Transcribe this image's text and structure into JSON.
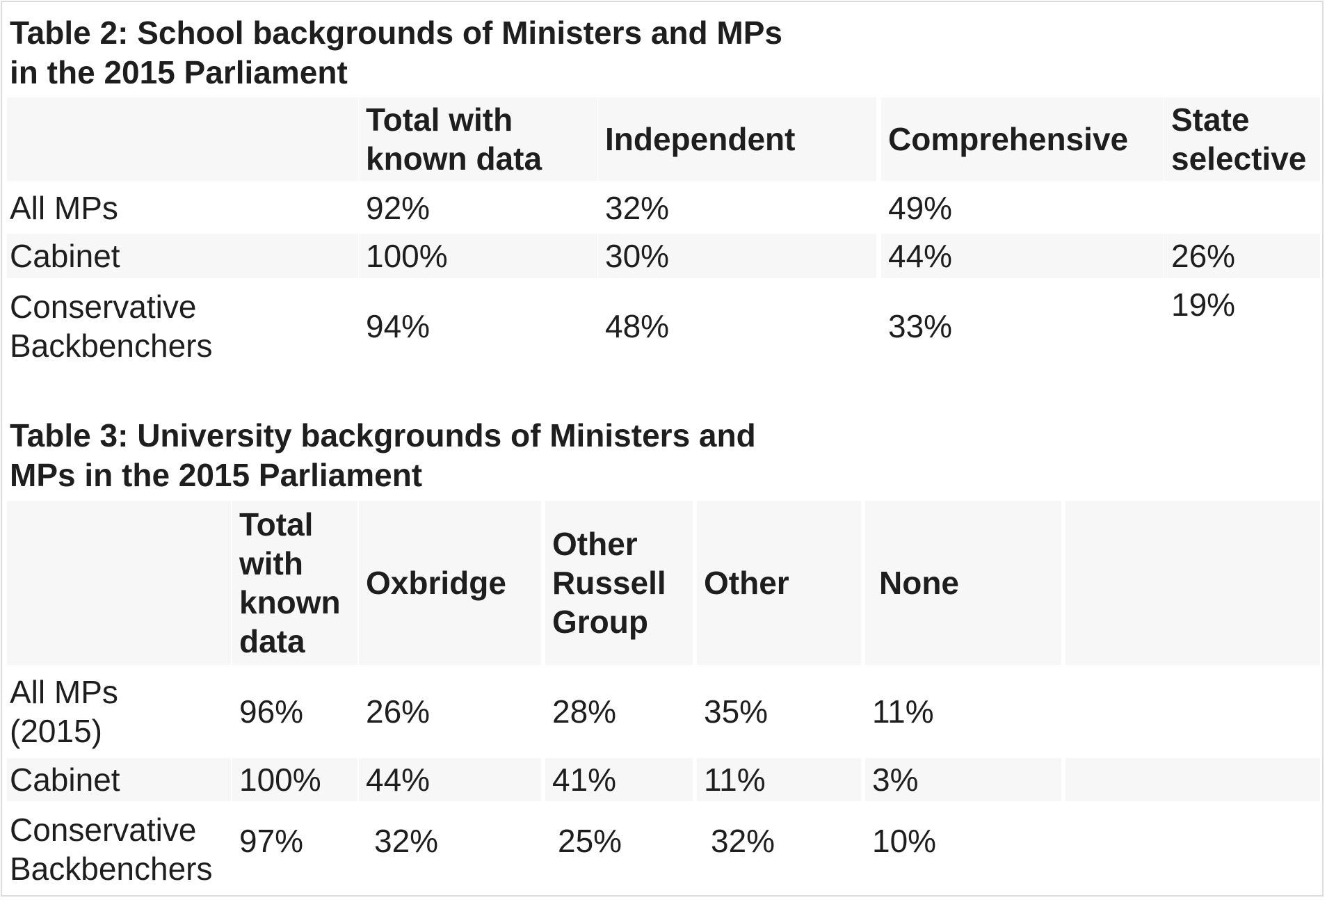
{
  "table2": {
    "title_line1": "Table 2: School backgrounds of Ministers and MPs",
    "title_line2": "in the 2015 Parliament",
    "headers": {
      "total_line1": "Total with",
      "total_line2": "known data",
      "independent": "Independent",
      "comprehensive": "Comprehensive",
      "state_line1": "State",
      "state_line2": "selective"
    },
    "rows": [
      {
        "label": "All MPs",
        "total": "92%",
        "independent": "32%",
        "comprehensive": "49%",
        "state_selective": ""
      },
      {
        "label": "Cabinet",
        "total": "100%",
        "independent": "30%",
        "comprehensive": "44%",
        "state_selective": "26%"
      },
      {
        "label_line1": "Conservative",
        "label_line2": "Backbenchers",
        "total": "94%",
        "independent": "48%",
        "comprehensive": "33%",
        "state_selective": "19%"
      }
    ]
  },
  "table3": {
    "title_line1": "Table 3: University backgrounds of Ministers and",
    "title_line2": "MPs in the 2015 Parliament",
    "headers": {
      "total_line1": "Total",
      "total_line2": "with",
      "total_line3": "known",
      "total_line4": "data",
      "oxbridge": "Oxbridge",
      "russell_line1": "Other",
      "russell_line2": "Russell",
      "russell_line3": "Group",
      "other": "Other",
      "none": "None"
    },
    "rows": [
      {
        "label_line1": "All MPs",
        "label_line2": "(2015)",
        "total": "96%",
        "oxbridge": "26%",
        "russell": "28%",
        "other": "35%",
        "none": "11%"
      },
      {
        "label": "Cabinet",
        "total": "100%",
        "oxbridge": "44%",
        "russell": "41%",
        "other": "11%",
        "none": "3%"
      },
      {
        "label_line1": "Conservative",
        "label_line2": "Backbenchers",
        "total": "97%",
        "oxbridge": "32%",
        "russell": "25%",
        "other": "32%",
        "none": "10%"
      }
    ]
  }
}
